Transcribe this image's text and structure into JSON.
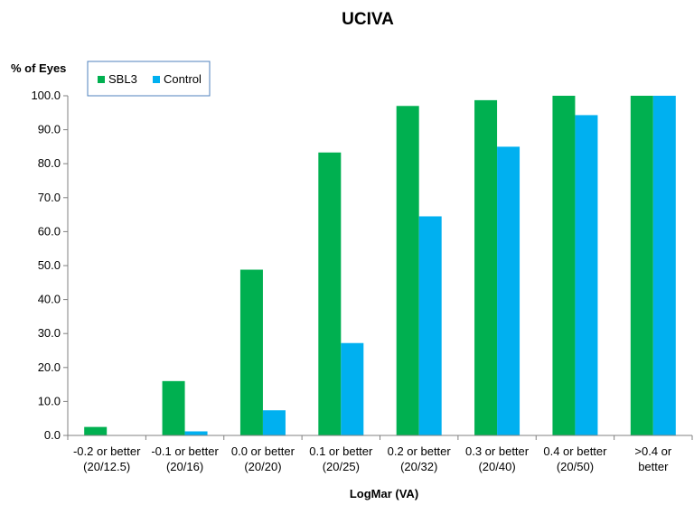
{
  "chart_data": {
    "type": "bar",
    "title": "UCIVA",
    "ylabel": "% of Eyes",
    "xlabel": "LogMar (VA)",
    "ylim": [
      0,
      100
    ],
    "yticks": [
      "0.0",
      "10.0",
      "20.0",
      "30.0",
      "40.0",
      "50.0",
      "60.0",
      "70.0",
      "80.0",
      "90.0",
      "100.0"
    ],
    "categories": [
      [
        "-0.2 or better",
        "(20/12.5)"
      ],
      [
        "-0.1 or better",
        "(20/16)"
      ],
      [
        "0.0 or better",
        "(20/20)"
      ],
      [
        "0.1 or better",
        "(20/25)"
      ],
      [
        "0.2 or better",
        "(20/32)"
      ],
      [
        "0.3 or better",
        "(20/40)"
      ],
      [
        "0.4 or better",
        "(20/50)"
      ],
      [
        ">0.4 or",
        "better"
      ]
    ],
    "series": [
      {
        "name": "SBL3",
        "color": "#00b050",
        "values": [
          2.5,
          16.0,
          48.8,
          83.3,
          97.0,
          98.7,
          100.0,
          100.0
        ]
      },
      {
        "name": "Control",
        "color": "#00b0f0",
        "values": [
          0.0,
          1.2,
          7.4,
          27.2,
          64.5,
          85.0,
          94.3,
          100.0
        ]
      }
    ],
    "grid": false,
    "legend_position": "top-left"
  }
}
